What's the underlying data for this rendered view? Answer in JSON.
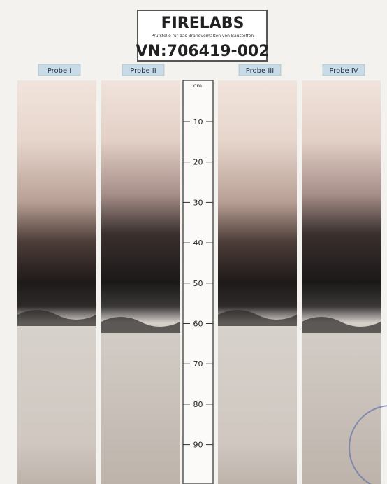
{
  "header": {
    "brand": "FIRELABS",
    "subtitle": "Prüfstelle für das Brandverhalten von Baustoffen",
    "id": "VN:706419-002"
  },
  "samples": [
    "Probe I",
    "Probe II",
    "Probe III",
    "Probe IV"
  ],
  "ruler": {
    "unit": "cm",
    "marks": [
      10,
      20,
      30,
      40,
      50,
      60,
      70,
      80,
      90
    ]
  }
}
